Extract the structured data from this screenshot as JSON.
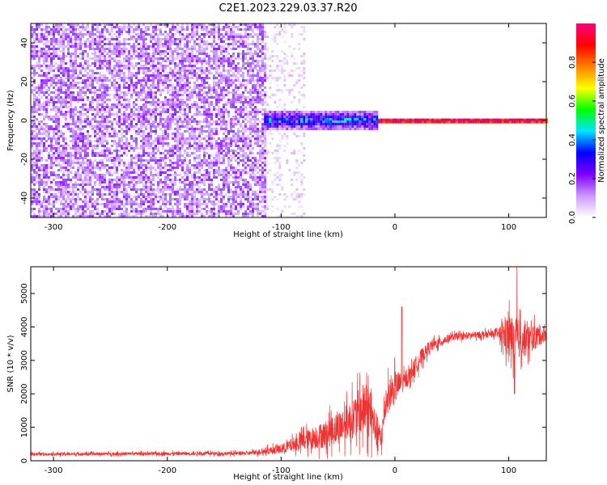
{
  "title": "C2E1.2023.229.03.37.R20",
  "chart_data": [
    {
      "type": "heatmap",
      "xlabel": "Height of straight line (km)",
      "ylabel": "Frequency (Hz)",
      "xlim": [
        -320,
        133
      ],
      "ylim": [
        -50,
        50
      ],
      "xticks": [
        -300,
        -200,
        -100,
        0,
        100
      ],
      "yticks": [
        -40,
        -20,
        0,
        20,
        40
      ],
      "colorbar": {
        "label": "Normalized spectral amplitude",
        "range": [
          0.0,
          1.0
        ],
        "ticks": [
          0.0,
          0.2,
          0.4,
          0.6,
          0.8
        ],
        "colors": [
          "#ffffff",
          "#cc99ff",
          "#7f00ff",
          "#0000ff",
          "#00e5ff",
          "#00ff00",
          "#ffff00",
          "#ff8000",
          "#ff0000",
          "#ff0080"
        ]
      },
      "regions": [
        {
          "x": [
            -320,
            -115
          ],
          "freq": [
            -50,
            50
          ],
          "amplitude": [
            0.05,
            0.2
          ]
        },
        {
          "x": [
            -115,
            -80
          ],
          "freq": [
            -50,
            50
          ],
          "amplitude": [
            0.02,
            0.08
          ]
        },
        {
          "x": [
            -115,
            -15
          ],
          "freq": [
            -5,
            5
          ],
          "amplitude": [
            0.2,
            0.55
          ]
        },
        {
          "x": [
            -15,
            133
          ],
          "freq": [
            -1,
            1
          ],
          "amplitude": [
            0.8,
            0.95
          ]
        }
      ]
    },
    {
      "type": "line",
      "xlabel": "Height of straight line (km)",
      "ylabel": "SNR (10 * v/v)",
      "xlim": [
        -320,
        133
      ],
      "ylim": [
        0,
        5800
      ],
      "xticks": [
        -300,
        -200,
        -100,
        0,
        100
      ],
      "yticks": [
        0,
        1000,
        2000,
        3000,
        4000,
        5000
      ],
      "color": "#ee3333",
      "profile": [
        {
          "x": -320,
          "y": 200,
          "spread": 60
        },
        {
          "x": -130,
          "y": 220,
          "spread": 80
        },
        {
          "x": -100,
          "y": 350,
          "spread": 200
        },
        {
          "x": -80,
          "y": 600,
          "spread": 400
        },
        {
          "x": -60,
          "y": 800,
          "spread": 600
        },
        {
          "x": -40,
          "y": 1200,
          "spread": 800
        },
        {
          "x": -25,
          "y": 1600,
          "spread": 1200
        },
        {
          "x": -12,
          "y": 600,
          "spread": 500
        },
        {
          "x": -8,
          "y": 1800,
          "spread": 700
        },
        {
          "x": 0,
          "y": 2200,
          "spread": 700
        },
        {
          "x": 10,
          "y": 2400,
          "spread": 300
        },
        {
          "x": 20,
          "y": 2950,
          "spread": 400
        },
        {
          "x": 30,
          "y": 3400,
          "spread": 250
        },
        {
          "x": 50,
          "y": 3700,
          "spread": 150
        },
        {
          "x": 90,
          "y": 3800,
          "spread": 150
        },
        {
          "x": 100,
          "y": 3700,
          "spread": 1000
        },
        {
          "x": 115,
          "y": 3600,
          "spread": 700
        },
        {
          "x": 133,
          "y": 3800,
          "spread": 300
        }
      ],
      "annotations": [
        {
          "x": 6,
          "y": 4600,
          "note": "spike"
        },
        {
          "x": 107,
          "y": 5800,
          "note": "spike"
        },
        {
          "x": 105,
          "y": 2000,
          "note": "dip"
        }
      ]
    }
  ]
}
